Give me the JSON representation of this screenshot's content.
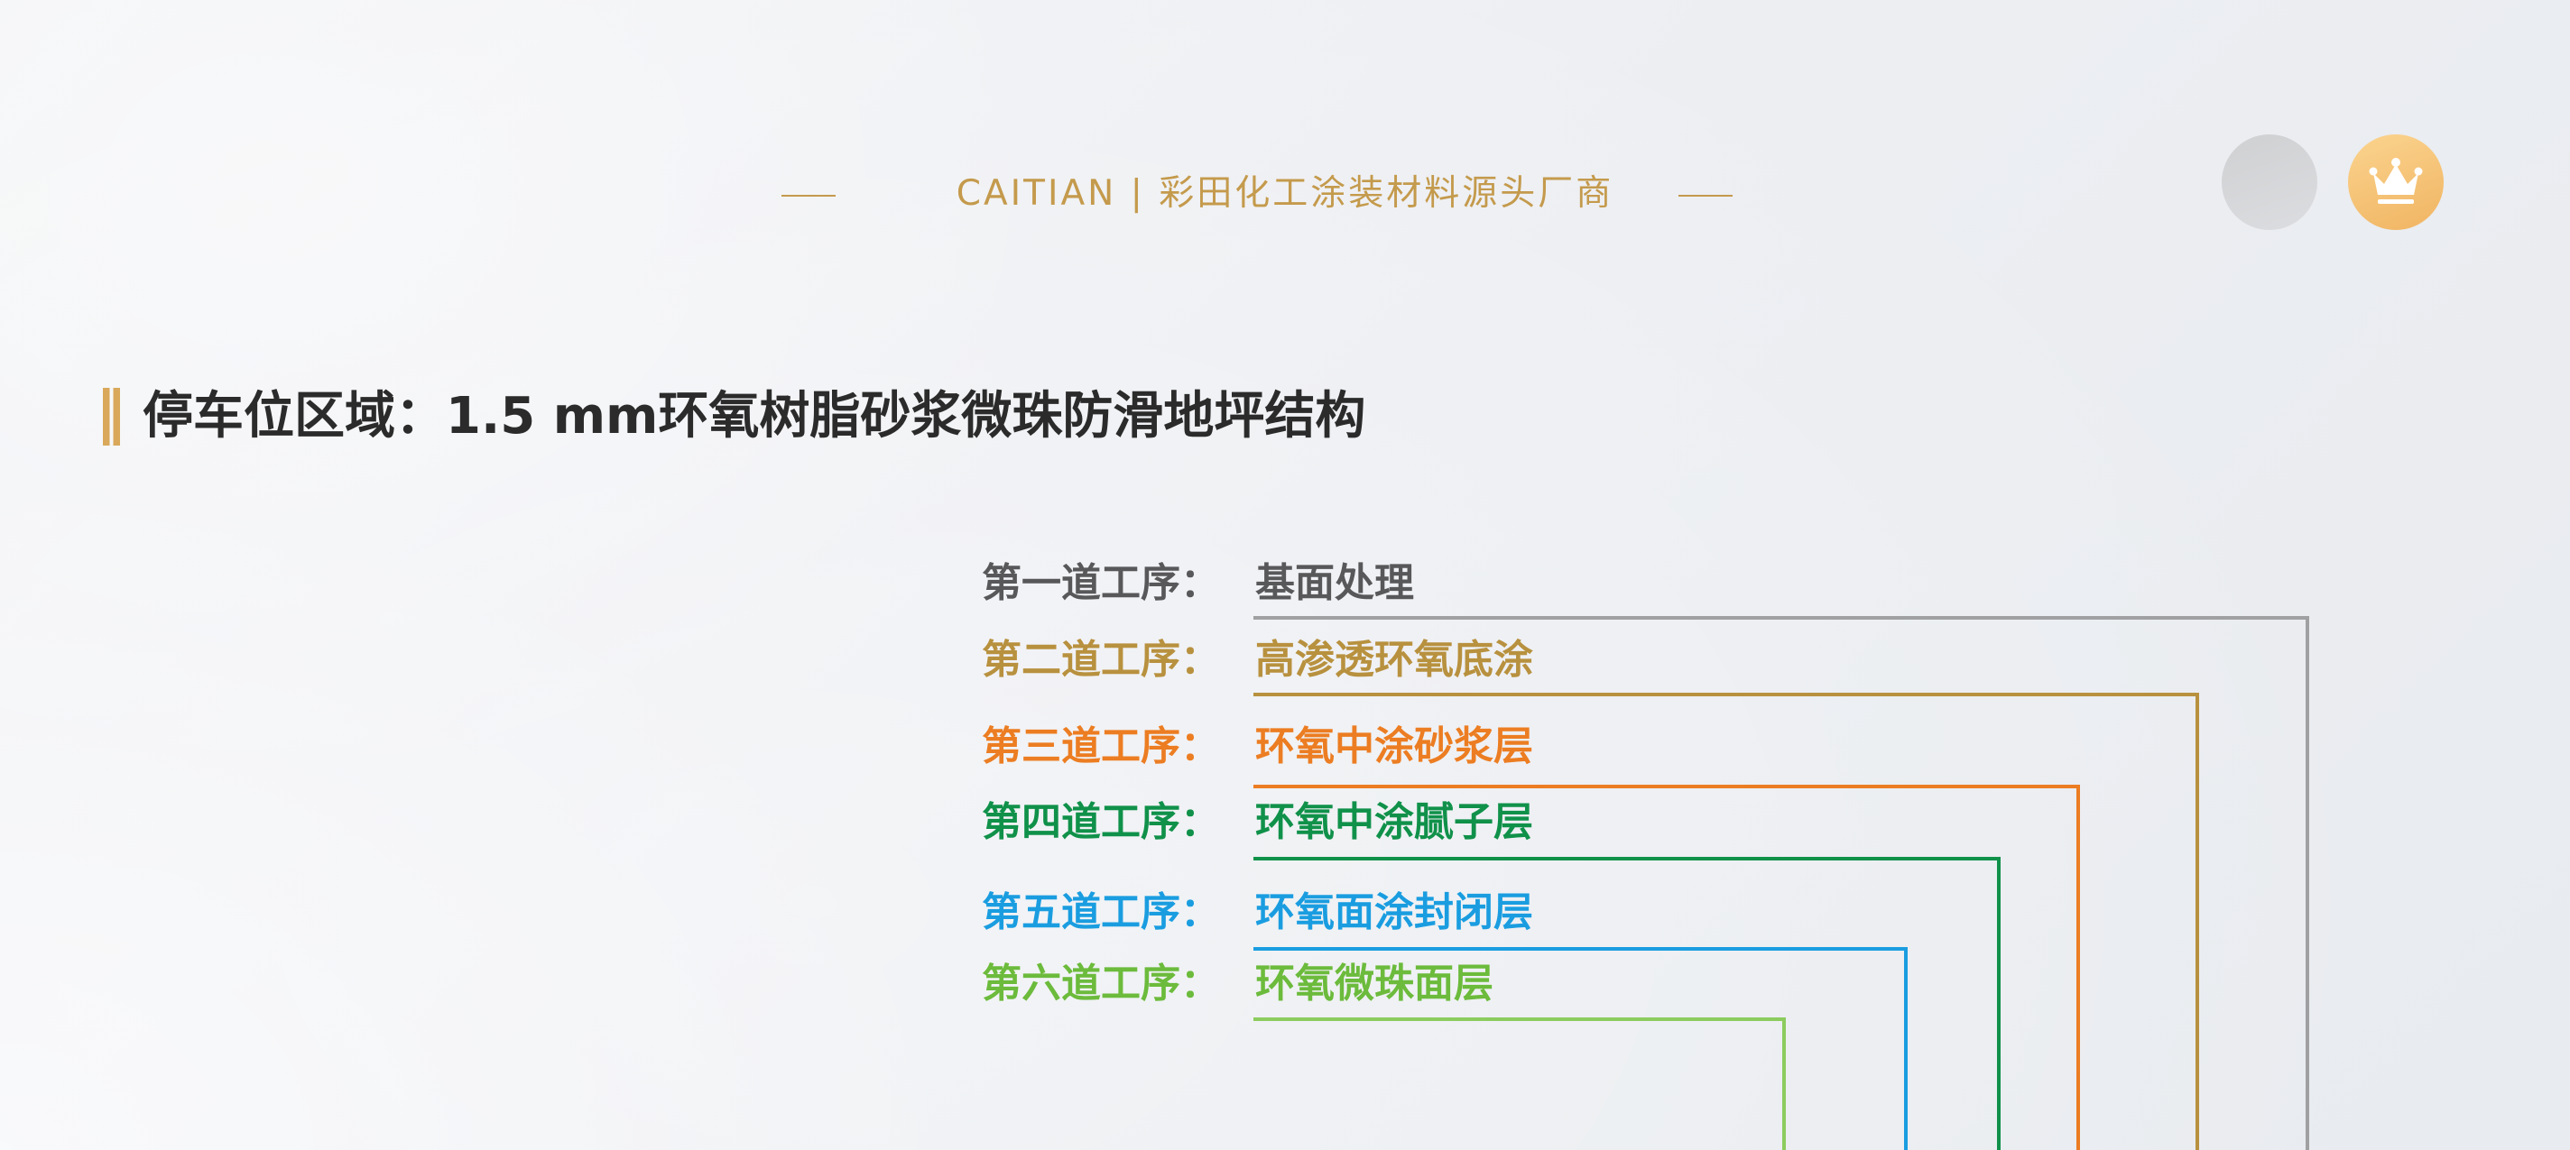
{
  "header": {
    "text": "CAITIAN | 彩田化工涂装材料源头厂商"
  },
  "icons": {
    "avatar": "gray-circle",
    "vip": "crown-icon"
  },
  "title": "停车位区域：1.5 mm环氧树脂砂浆微珠防滑地坪结构",
  "steps": [
    {
      "label": "第一道工序：",
      "desc": "基面处理",
      "color": "#58585a",
      "line_color": "#a0a0a2"
    },
    {
      "label": "第二道工序：",
      "desc": "高渗透环氧底涂",
      "color": "#b8913f",
      "line_color": "#b8913f"
    },
    {
      "label": "第三道工序：",
      "desc": "环氧中涂砂浆层",
      "color": "#ec7d22",
      "line_color": "#ec7d22"
    },
    {
      "label": "第四道工序：",
      "desc": "环氧中涂腻子层",
      "color": "#10914a",
      "line_color": "#10914a"
    },
    {
      "label": "第五道工序：",
      "desc": "环氧面涂封闭层",
      "color": "#1a9de0",
      "line_color": "#1a9de0"
    },
    {
      "label": "第六道工序：",
      "desc": "环氧微珠面层",
      "color": "#6cbb3c",
      "line_color": "#8ccc5e"
    }
  ]
}
